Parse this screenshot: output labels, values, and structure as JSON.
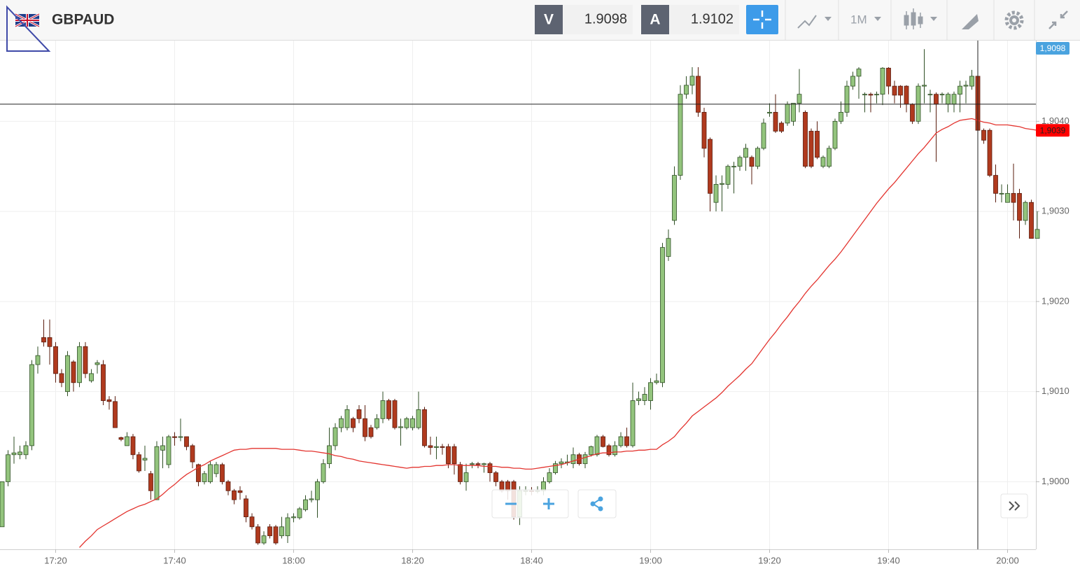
{
  "header": {
    "symbol": "GBPAUD",
    "bid_label": "V",
    "bid": "1.9098",
    "ask_label": "A",
    "ask": "1.9102",
    "timeframe": "1M"
  },
  "chart_data": {
    "type": "candlestick",
    "x": [
      "17:11",
      "17:12",
      "17:13",
      "17:14",
      "17:15",
      "17:16",
      "17:17",
      "17:18",
      "17:19",
      "17:20",
      "17:21",
      "17:22",
      "17:23",
      "17:24",
      "17:25",
      "17:26",
      "17:27",
      "17:28",
      "17:29",
      "17:30",
      "17:31",
      "17:32",
      "17:33",
      "17:34",
      "17:35",
      "17:36",
      "17:37",
      "17:38",
      "17:39",
      "17:40",
      "17:41",
      "17:42",
      "17:43",
      "17:44",
      "17:45",
      "17:46",
      "17:47",
      "17:48",
      "17:49",
      "17:50",
      "17:51",
      "17:52",
      "17:53",
      "17:54",
      "17:55",
      "17:56",
      "17:57",
      "17:58",
      "17:59",
      "18:00",
      "18:01",
      "18:02",
      "18:03",
      "18:04",
      "18:05",
      "18:06",
      "18:07",
      "18:08",
      "18:09",
      "18:10",
      "18:11",
      "18:12",
      "18:13",
      "18:14",
      "18:15",
      "18:16",
      "18:17",
      "18:18",
      "18:19",
      "18:20",
      "18:21",
      "18:22",
      "18:23",
      "18:24",
      "18:25",
      "18:26",
      "18:27",
      "18:28",
      "18:29",
      "18:30",
      "18:31",
      "18:32",
      "18:33",
      "18:34",
      "18:35",
      "18:36",
      "18:37",
      "18:38",
      "18:39",
      "18:40",
      "18:41",
      "18:42",
      "18:43",
      "18:44",
      "18:45",
      "18:46",
      "18:47",
      "18:48",
      "18:49",
      "18:50",
      "18:51",
      "18:52",
      "18:53",
      "18:54",
      "18:55",
      "18:56",
      "18:57",
      "18:58",
      "18:59",
      "19:00",
      "19:01",
      "19:02",
      "19:03",
      "19:04",
      "19:05",
      "19:06",
      "19:07",
      "19:08",
      "19:09",
      "19:10",
      "19:11",
      "19:12",
      "19:13",
      "19:14",
      "19:15",
      "19:16",
      "19:17",
      "19:18",
      "19:19",
      "19:20",
      "19:21",
      "19:22",
      "19:23",
      "19:24",
      "19:25",
      "19:26",
      "19:27",
      "19:28",
      "19:29",
      "19:30",
      "19:31",
      "19:32",
      "19:33",
      "19:34",
      "19:35",
      "19:36",
      "19:37",
      "19:38",
      "19:39",
      "19:40",
      "19:41",
      "19:42",
      "19:43",
      "19:44",
      "19:45",
      "19:46",
      "19:47",
      "19:48",
      "19:49",
      "19:50",
      "19:51",
      "19:52",
      "19:53",
      "19:54",
      "19:55",
      "19:56",
      "19:57",
      "19:58",
      "19:59",
      "20:00",
      "20:01",
      "20:02",
      "20:03",
      "20:04",
      "20:05"
    ],
    "open": [
      1.8995,
      1.9,
      1.9003,
      1.9003,
      1.9003,
      1.9004,
      1.9013,
      1.9016,
      1.9016,
      1.9015,
      1.9012,
      1.901,
      1.90133,
      1.9011,
      1.9015,
      1.90112,
      1.9013,
      1.9013,
      1.90091,
      1.90089,
      1.90049,
      1.9004,
      1.9005,
      1.9003,
      1.90024,
      1.90009,
      1.8998,
      1.90035,
      1.90019,
      1.9005,
      1.9005,
      1.9005,
      1.9004,
      1.90019,
      1.9,
      1.9,
      1.90009,
      1.90019,
      1.9,
      1.8999,
      1.8999,
      1.89981,
      1.89961,
      1.8995,
      1.89932,
      1.8995,
      1.8995,
      1.8994,
      1.8994,
      1.8996,
      1.8996,
      1.89969,
      1.8998,
      1.8998,
      1.9,
      1.9002,
      1.9004,
      1.9006,
      1.9006,
      1.9007,
      1.9008,
      1.9007,
      1.9006,
      1.9006,
      1.9007,
      1.9009,
      1.9009,
      1.9006,
      1.9006,
      1.9006,
      1.9006,
      1.9008,
      1.9004,
      1.90038,
      1.90039,
      1.90039,
      1.90039,
      1.90019,
      1.9,
      1.9002,
      1.9002,
      1.90019,
      1.9002,
      1.9001,
      1.9,
      1.9,
      1.9,
      1.89961,
      1.8999,
      1.8999,
      1.8999,
      1.8999,
      1.9,
      1.9001,
      1.9002,
      1.90021,
      1.9002,
      1.9003,
      1.9002,
      1.9003,
      1.9003,
      1.9005,
      1.9004,
      1.9003,
      1.9004,
      1.9005,
      1.9004,
      1.9009,
      1.9009,
      1.9009,
      1.9011,
      1.9011,
      1.9025,
      1.9029,
      1.9034,
      1.9043,
      1.9044,
      1.9045,
      1.9041,
      1.9038,
      1.9031,
      1.9033,
      1.9033,
      1.9035,
      1.9035,
      1.9036,
      1.9036,
      1.9035,
      1.9037,
      1.90409,
      1.9041,
      1.90398,
      1.90398,
      1.904,
      1.9042,
      1.9041,
      1.90389,
      1.90389,
      1.9035,
      1.9035,
      1.9037,
      1.904,
      1.9041,
      1.90439,
      1.9045,
      1.9043,
      1.9043,
      1.9043,
      1.9043,
      1.90459,
      1.90439,
      1.90439,
      1.90439,
      1.90419,
      1.904,
      1.90439,
      1.9043,
      1.9043,
      1.9043,
      1.90419,
      1.90419,
      1.9043,
      1.90439,
      1.90439,
      1.9045,
      1.9039,
      1.9039,
      1.9034,
      1.9032,
      1.9031,
      1.9032,
      1.9032,
      1.9029,
      1.9031,
      1.9027
    ],
    "high": [
      1.9,
      1.90035,
      1.9005,
      1.9004,
      1.90045,
      1.90135,
      1.9015,
      1.9018,
      1.9018,
      1.90155,
      1.90125,
      1.90145,
      1.90135,
      1.90155,
      1.90155,
      1.90125,
      1.90135,
      1.90135,
      1.90095,
      1.90095,
      1.9005,
      1.90055,
      1.90053,
      1.90033,
      1.9004,
      1.90012,
      1.90045,
      1.9005,
      1.90052,
      1.90055,
      1.9007,
      1.9005,
      1.90042,
      1.9002,
      1.90012,
      1.90023,
      1.90022,
      1.90021,
      1.90002,
      1.89992,
      1.89995,
      1.89985,
      1.89965,
      1.89953,
      1.89945,
      1.89953,
      1.89952,
      1.89961,
      1.89965,
      1.89965,
      1.89972,
      1.89985,
      1.8999,
      1.90003,
      1.90025,
      1.9006,
      1.90065,
      1.90073,
      1.90085,
      1.90072,
      1.90085,
      1.90085,
      1.90063,
      1.90075,
      1.901,
      1.90092,
      1.90092,
      1.9007,
      1.90072,
      1.90073,
      1.901,
      1.90083,
      1.9005,
      1.9005,
      1.90042,
      1.90042,
      1.90042,
      1.90022,
      1.9002,
      1.90022,
      1.90022,
      1.90021,
      1.90022,
      1.90012,
      1.90002,
      1.90002,
      1.90002,
      1.89995,
      1.89995,
      1.89994,
      1.89995,
      1.90005,
      1.90015,
      1.90023,
      1.90026,
      1.9003,
      1.90038,
      1.90032,
      1.90033,
      1.9004,
      1.90052,
      1.90052,
      1.90042,
      1.90045,
      1.90055,
      1.9006,
      1.9011,
      1.901,
      1.90105,
      1.90115,
      1.9012,
      1.90265,
      1.9028,
      1.9035,
      1.9044,
      1.9045,
      1.9046,
      1.9046,
      1.90415,
      1.90382,
      1.9034,
      1.9034,
      1.90352,
      1.90355,
      1.90362,
      1.90375,
      1.90362,
      1.90372,
      1.90403,
      1.9042,
      1.9043,
      1.904,
      1.90422,
      1.9042,
      1.90458,
      1.90412,
      1.90392,
      1.904,
      1.90362,
      1.90373,
      1.90403,
      1.90422,
      1.90445,
      1.90455,
      1.9046,
      1.90432,
      1.90432,
      1.90433,
      1.9046,
      1.9046,
      1.90445,
      1.9044,
      1.9044,
      1.9042,
      1.90442,
      1.9048,
      1.90435,
      1.90432,
      1.90432,
      1.90432,
      1.90433,
      1.90445,
      1.90445,
      1.90457,
      1.9046,
      1.90392,
      1.90392,
      1.90352,
      1.9033,
      1.9033,
      1.90353,
      1.90325,
      1.90312,
      1.90313,
      1.903
    ],
    "low": [
      1.8995,
      1.89995,
      1.9002,
      1.90025,
      1.90025,
      1.90035,
      1.9012,
      1.9015,
      1.9013,
      1.9011,
      1.90105,
      1.90095,
      1.901,
      1.90105,
      1.90115,
      1.9011,
      1.9012,
      1.90085,
      1.9008,
      1.9006,
      1.90045,
      1.9004,
      1.90025,
      1.9001,
      1.90012,
      1.8998,
      1.8998,
      1.90015,
      1.90015,
      1.9004,
      1.90045,
      1.90035,
      1.90015,
      1.89995,
      1.89997,
      1.89998,
      1.90005,
      1.89997,
      1.89985,
      1.89975,
      1.8998,
      1.89955,
      1.89947,
      1.8993,
      1.8993,
      1.89937,
      1.8993,
      1.89937,
      1.89932,
      1.89955,
      1.89958,
      1.89967,
      1.89977,
      1.8996,
      1.89998,
      1.90015,
      1.90035,
      1.90055,
      1.90057,
      1.90055,
      1.90065,
      1.90045,
      1.90048,
      1.90058,
      1.90065,
      1.90068,
      1.90058,
      1.9004,
      1.90058,
      1.90057,
      1.90058,
      1.90038,
      1.9003,
      1.90025,
      1.9003,
      1.90015,
      1.90008,
      1.89997,
      1.8999,
      1.90015,
      1.90015,
      1.9001,
      1.9,
      1.89995,
      1.89988,
      1.8998,
      1.89958,
      1.89952,
      1.89985,
      1.89985,
      1.89987,
      1.89985,
      1.89998,
      1.90008,
      1.90015,
      1.90018,
      1.90015,
      1.90018,
      1.90015,
      1.90028,
      1.90028,
      1.90038,
      1.90028,
      1.90028,
      1.90038,
      1.90038,
      1.90038,
      1.90085,
      1.90085,
      1.9008,
      1.90108,
      1.90105,
      1.90245,
      1.90285,
      1.90335,
      1.90425,
      1.9043,
      1.90405,
      1.9036,
      1.903,
      1.903,
      1.903,
      1.90325,
      1.9032,
      1.90345,
      1.90345,
      1.9033,
      1.90347,
      1.90368,
      1.90405,
      1.90387,
      1.90387,
      1.90395,
      1.90395,
      1.9041,
      1.90348,
      1.90348,
      1.90358,
      1.90348,
      1.90348,
      1.90368,
      1.90397,
      1.90405,
      1.90435,
      1.90425,
      1.9041,
      1.9041,
      1.9042,
      1.90418,
      1.9043,
      1.9042,
      1.90415,
      1.9041,
      1.90397,
      1.90397,
      1.9042,
      1.9041,
      1.90355,
      1.9042,
      1.9041,
      1.9041,
      1.9041,
      1.9042,
      1.90435,
      1.90385,
      1.90375,
      1.90338,
      1.9031,
      1.9031,
      1.9031,
      1.9029,
      1.9027,
      1.90285,
      1.9027,
      1.9027
    ],
    "close": [
      1.9,
      1.9003,
      1.90032,
      1.90033,
      1.9004,
      1.9013,
      1.9014,
      1.90155,
      1.9015,
      1.9012,
      1.9011,
      1.9014,
      1.9011,
      1.9015,
      1.9012,
      1.9012,
      1.90132,
      1.9009,
      1.90089,
      1.9006,
      1.90047,
      1.9005,
      1.9003,
      1.90012,
      1.90026,
      1.8999,
      1.90039,
      1.9004,
      1.9005,
      1.90049,
      1.9005,
      1.90039,
      1.90022,
      1.9,
      1.90009,
      1.90019,
      1.90019,
      1.9,
      1.8999,
      1.8998,
      1.89988,
      1.89961,
      1.8995,
      1.89932,
      1.8994,
      1.8994,
      1.89932,
      1.8995,
      1.8996,
      1.89961,
      1.8997,
      1.8998,
      1.89981,
      1.9,
      1.9002,
      1.9004,
      1.9006,
      1.9007,
      1.9008,
      1.9006,
      1.9007,
      1.9005,
      1.9005,
      1.9007,
      1.9009,
      1.9007,
      1.9006,
      1.90061,
      1.9007,
      1.9007,
      1.9008,
      1.9004,
      1.90038,
      1.90039,
      1.90038,
      1.9002,
      1.9002,
      1.9,
      1.9001,
      1.9002,
      1.90019,
      1.9002,
      1.9001,
      1.9,
      1.8999,
      1.8999,
      1.89961,
      1.8999,
      1.8999,
      1.89989,
      1.8999,
      1.9,
      1.9001,
      1.9002,
      1.90022,
      1.90022,
      1.9003,
      1.9002,
      1.9003,
      1.90039,
      1.9005,
      1.90039,
      1.9003,
      1.9004,
      1.9005,
      1.9004,
      1.9009,
      1.90092,
      1.90097,
      1.9011,
      1.90112,
      1.9026,
      1.9027,
      1.9034,
      1.9043,
      1.9044,
      1.9045,
      1.9041,
      1.9037,
      1.9032,
      1.9033,
      1.90331,
      1.9035,
      1.9035,
      1.9036,
      1.9037,
      1.9035,
      1.9037,
      1.90398,
      1.9041,
      1.90389,
      1.90389,
      1.90419,
      1.9042,
      1.9043,
      1.9035,
      1.9035,
      1.9036,
      1.9036,
      1.9037,
      1.904,
      1.9041,
      1.90439,
      1.9045,
      1.90458,
      1.9043,
      1.90429,
      1.9043,
      1.90459,
      1.90439,
      1.90429,
      1.90429,
      1.90419,
      1.904,
      1.90439,
      1.9044,
      1.9043,
      1.90419,
      1.9043,
      1.9043,
      1.9043,
      1.90439,
      1.9044,
      1.9045,
      1.9039,
      1.90379,
      1.9034,
      1.9032,
      1.9032,
      1.9032,
      1.9031,
      1.9029,
      1.9031,
      1.9027,
      1.9028
    ],
    "up_color": "#93c47d",
    "down_color": "#b03a1e",
    "ma": {
      "color": "#e3342f",
      "values": [
        null,
        null,
        null,
        null,
        null,
        null,
        null,
        null,
        null,
        null,
        null,
        null,
        null,
        1.89927,
        1.89934,
        1.8994,
        1.89947,
        1.89951,
        1.89955,
        1.89959,
        1.89963,
        1.89967,
        1.8997,
        1.89973,
        1.89975,
        1.89978,
        1.89981,
        1.89986,
        1.89992,
        1.89997,
        1.90003,
        1.90008,
        1.90012,
        1.90016,
        1.90019,
        1.90023,
        1.90026,
        1.90029,
        1.90032,
        1.90035,
        1.90036,
        1.90036,
        1.90037,
        1.90037,
        1.90037,
        1.90037,
        1.90037,
        1.90036,
        1.90036,
        1.90036,
        1.90035,
        1.90034,
        1.90034,
        1.90033,
        1.90032,
        1.90031,
        1.90029,
        1.90028,
        1.90026,
        1.90025,
        1.90023,
        1.90022,
        1.90021,
        1.9002,
        1.90019,
        1.90018,
        1.90017,
        1.90016,
        1.90015,
        1.90016,
        1.90016,
        1.90017,
        1.90017,
        1.90018,
        1.90018,
        1.90019,
        1.90019,
        1.90018,
        1.90018,
        1.90018,
        1.90018,
        1.90017,
        1.90017,
        1.90017,
        1.90016,
        1.90016,
        1.90015,
        1.90015,
        1.90014,
        1.90014,
        1.90015,
        1.90016,
        1.90017,
        1.90018,
        1.90019,
        1.90021,
        1.90023,
        1.90025,
        1.90027,
        1.90029,
        1.90031,
        1.90032,
        1.90032,
        1.90033,
        1.90033,
        1.90034,
        1.90034,
        1.90035,
        1.90035,
        1.90036,
        1.90036,
        1.90041,
        1.90045,
        1.9005,
        1.90058,
        1.90065,
        1.90073,
        1.90078,
        1.90083,
        1.90088,
        1.90093,
        1.90099,
        1.90106,
        1.90112,
        1.90118,
        1.90125,
        1.90131,
        1.9014,
        1.90149,
        1.90158,
        1.90166,
        1.90175,
        1.90183,
        1.90192,
        1.902,
        1.90209,
        1.90217,
        1.90224,
        1.90232,
        1.9024,
        1.90247,
        1.90255,
        1.90264,
        1.90273,
        1.90282,
        1.90291,
        1.903,
        1.90309,
        1.90317,
        1.90325,
        1.90332,
        1.9034,
        1.90348,
        1.90356,
        1.90364,
        1.90371,
        1.90379,
        1.90387,
        1.90391,
        1.90394,
        1.90398,
        1.90401,
        1.90402,
        1.90403,
        1.90401,
        1.90399,
        1.90398,
        1.90396,
        1.90396,
        1.90396,
        1.90395,
        1.90394,
        1.90392,
        1.90391,
        1.9039
      ]
    },
    "ylim": [
      1.89925,
      1.90488
    ],
    "yticks": [
      {
        "value": 1.9,
        "label": "1,9000"
      },
      {
        "value": 1.901,
        "label": "1,9010"
      },
      {
        "value": 1.902,
        "label": "1,9020"
      },
      {
        "value": 1.903,
        "label": "1,9030"
      },
      {
        "value": 1.904,
        "label": "1,9040"
      }
    ],
    "xticks": [
      "17:20",
      "17:40",
      "18:00",
      "18:20",
      "18:40",
      "19:00",
      "19:20",
      "19:40",
      "20:00"
    ],
    "grid": true,
    "price_markers": [
      {
        "value": 1.9098,
        "label": "1,9098",
        "color": "#4aa3df"
      },
      {
        "value": 1.9039,
        "label": "1,9039",
        "color": "#ff0000"
      }
    ],
    "crosshair": {
      "x": "19:55",
      "y": 1.90419
    }
  }
}
